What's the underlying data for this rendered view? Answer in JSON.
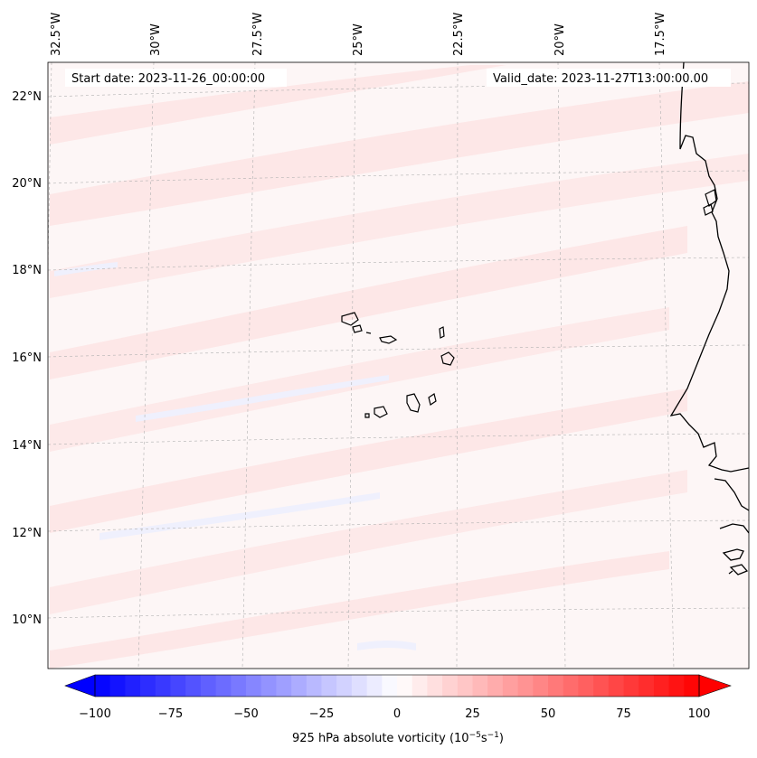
{
  "map": {
    "header": {
      "start_date": "Start date: 2023-11-26_00:00:00",
      "valid_date": "Valid_date: 2023-11-27T13:00:00.00"
    },
    "longitude_labels": [
      "32.5°W",
      "30°W",
      "27.5°W",
      "25°W",
      "22.5°W",
      "20°W",
      "17.5°W"
    ],
    "latitude_labels": [
      "22°N",
      "20°N",
      "18°N",
      "16°N",
      "14°N",
      "12°N",
      "10°N"
    ],
    "colorbar": {
      "title": "925 hPa absolute vorticity (10",
      "unit_exp1": "−5",
      "unit_mid": "s",
      "unit_exp2": "−1",
      "unit_close": ")",
      "ticks": [
        "−100",
        "−75",
        "−50",
        "−25",
        "0",
        "25",
        "50",
        "75",
        "100"
      ],
      "min": -100,
      "max": 100,
      "step": 5,
      "negative_color": "#0000ff",
      "positive_color": "#ff0000"
    },
    "colors": {
      "background_field": "#fdf6f6",
      "light_positive": "#fde6e6",
      "light_negative": "#eef0fe",
      "coastline": "#000000",
      "grid": "#b0b0b0"
    }
  }
}
